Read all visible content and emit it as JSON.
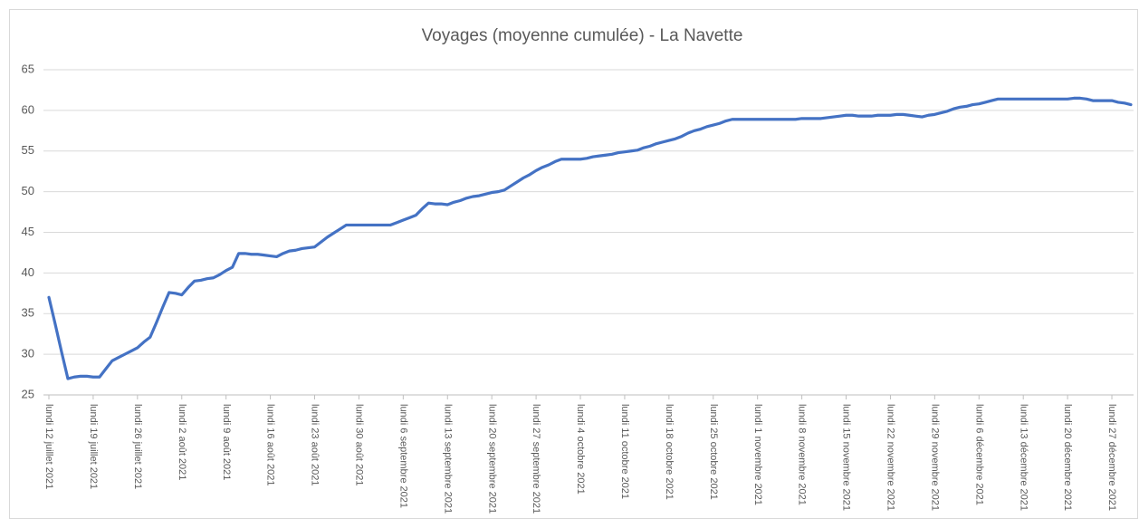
{
  "chart_data": {
    "type": "line",
    "title": "Voyages (moyenne cumulée) - La Navette",
    "categories": [
      "lundi 12 juillet 2021",
      null,
      null,
      null,
      null,
      null,
      null,
      "lundi 19 juillet 2021",
      null,
      null,
      null,
      null,
      null,
      null,
      "lundi 26 juillet 2021",
      null,
      null,
      null,
      null,
      null,
      null,
      "lundi 2 août 2021",
      null,
      null,
      null,
      null,
      null,
      null,
      "lundi 9 août 2021",
      null,
      null,
      null,
      null,
      null,
      null,
      "lundi 16 août 2021",
      null,
      null,
      null,
      null,
      null,
      null,
      "lundi 23 août 2021",
      null,
      null,
      null,
      null,
      null,
      null,
      "lundi 30 août 2021",
      null,
      null,
      null,
      null,
      null,
      null,
      "lundi 6 septembre 2021",
      null,
      null,
      null,
      null,
      null,
      null,
      "lundi 13 septembre 2021",
      null,
      null,
      null,
      null,
      null,
      null,
      "lundi 20 septembre 2021",
      null,
      null,
      null,
      null,
      null,
      null,
      "lundi 27 septembre 2021",
      null,
      null,
      null,
      null,
      null,
      null,
      "lundi 4 octobre 2021",
      null,
      null,
      null,
      null,
      null,
      null,
      "lundi 11 octobre 2021",
      null,
      null,
      null,
      null,
      null,
      null,
      "lundi 18 octobre 2021",
      null,
      null,
      null,
      null,
      null,
      null,
      "lundi 25 octobre 2021",
      null,
      null,
      null,
      null,
      null,
      null,
      "lundi 1 novembre 2021",
      null,
      null,
      null,
      null,
      null,
      null,
      "lundi 8 novembre 2021",
      null,
      null,
      null,
      null,
      null,
      null,
      "lundi 15 novembre 2021",
      null,
      null,
      null,
      null,
      null,
      null,
      "lundi 22 novembre 2021",
      null,
      null,
      null,
      null,
      null,
      null,
      "lundi 29 novembre 2021",
      null,
      null,
      null,
      null,
      null,
      null,
      "lundi 6 décembre 2021",
      null,
      null,
      null,
      null,
      null,
      null,
      "lundi 13 décembre 2021",
      null,
      null,
      null,
      null,
      null,
      null,
      "lundi 20 décembre 2021",
      null,
      null,
      null,
      null,
      null,
      null,
      "lundi 27 décembre 2021",
      null,
      null,
      null
    ],
    "values": [
      37.0,
      33.7,
      30.3,
      27.0,
      27.2,
      27.3,
      27.3,
      27.2,
      27.2,
      28.2,
      29.2,
      29.6,
      30.0,
      30.4,
      30.8,
      31.5,
      32.1,
      33.9,
      35.8,
      37.6,
      37.5,
      37.3,
      38.2,
      39.0,
      39.1,
      39.3,
      39.4,
      39.8,
      40.3,
      40.7,
      42.4,
      42.4,
      42.3,
      42.3,
      42.2,
      42.1,
      42.0,
      42.4,
      42.7,
      42.8,
      43.0,
      43.1,
      43.2,
      43.8,
      44.4,
      44.9,
      45.4,
      45.9,
      45.9,
      45.9,
      45.9,
      45.9,
      45.9,
      45.9,
      45.9,
      46.2,
      46.5,
      46.8,
      47.1,
      47.9,
      48.6,
      48.5,
      48.5,
      48.4,
      48.7,
      48.9,
      49.2,
      49.4,
      49.5,
      49.7,
      49.9,
      50.0,
      50.2,
      50.7,
      51.2,
      51.7,
      52.1,
      52.6,
      53.0,
      53.3,
      53.7,
      54.0,
      54.0,
      54.0,
      54.0,
      54.1,
      54.3,
      54.4,
      54.5,
      54.6,
      54.8,
      54.9,
      55.0,
      55.1,
      55.4,
      55.6,
      55.9,
      56.1,
      56.3,
      56.5,
      56.8,
      57.2,
      57.5,
      57.7,
      58.0,
      58.2,
      58.4,
      58.7,
      58.9,
      58.9,
      58.9,
      58.9,
      58.9,
      58.9,
      58.9,
      58.9,
      58.9,
      58.9,
      58.9,
      59.0,
      59.0,
      59.0,
      59.0,
      59.1,
      59.2,
      59.3,
      59.4,
      59.4,
      59.3,
      59.3,
      59.3,
      59.4,
      59.4,
      59.4,
      59.5,
      59.5,
      59.4,
      59.3,
      59.2,
      59.4,
      59.5,
      59.7,
      59.9,
      60.2,
      60.4,
      60.5,
      60.7,
      60.8,
      61.0,
      61.2,
      61.4,
      61.4,
      61.4,
      61.4,
      61.4,
      61.4,
      61.4,
      61.4,
      61.4,
      61.4,
      61.4,
      61.4,
      61.5,
      61.5,
      61.4,
      61.2,
      61.2,
      61.2,
      61.2,
      61.0,
      60.9,
      60.7
    ],
    "color": "#4472c4",
    "ylim": [
      25,
      65
    ],
    "yticks": [
      25,
      30,
      35,
      40,
      45,
      50,
      55,
      60,
      65
    ],
    "grid": true
  }
}
